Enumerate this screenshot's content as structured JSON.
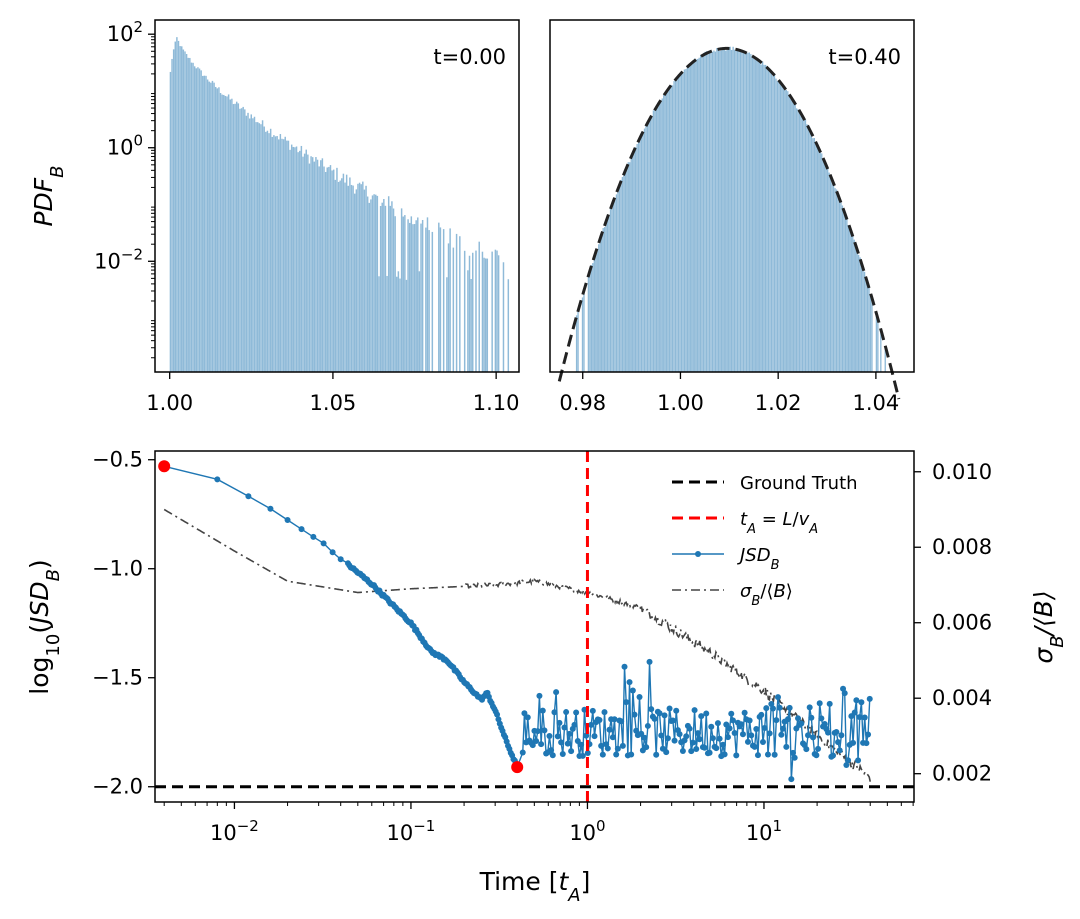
{
  "chart_data": [
    {
      "type": "bar",
      "panel": "histogram-t0",
      "annotation": "t=0.00",
      "ylabel_html": "PDF<tspan baseline-shift='sub' font-size='18'>B</tspan>",
      "ylabel_text": "PDF_B",
      "yscale": "log",
      "xlim": [
        0.9955,
        1.107
      ],
      "ylim_log10": [
        -3.95,
        2.25
      ],
      "xticks": [
        1.0,
        1.05,
        1.1
      ],
      "xtick_labels": [
        "1.00",
        "1.05",
        "1.10"
      ],
      "yticks_exp": [
        2,
        0,
        -2
      ],
      "color": "#8fbad8",
      "decay_profile": {
        "peak_x": 1.0023,
        "peak_log10": 1.95,
        "start_x": 1.0,
        "end_x": 1.104,
        "tail_log10": -2.15
      }
    },
    {
      "type": "bar",
      "panel": "histogram-t0.40",
      "annotation": "t=0.40",
      "yscale": "log",
      "xlim": [
        0.9733,
        1.0478
      ],
      "ylim_log10": [
        -3.95,
        2.25
      ],
      "xticks": [
        0.98,
        1.0,
        1.02,
        1.04
      ],
      "xtick_labels": [
        "0.98",
        "1.00",
        "1.02",
        "1.04"
      ],
      "color": "#8fbad8",
      "gaussian_fit": {
        "mean": 1.0095,
        "sigma": 0.0066,
        "peak_log10": 1.75,
        "color": "#222222"
      },
      "bar_range": [
        0.978,
        1.0445
      ]
    },
    {
      "type": "line",
      "panel": "jsd-timeseries",
      "xlabel_text": "Time [t_A]",
      "ylabel_text": "log10(JSD_B)",
      "y2label_text": "σ_B/⟨B⟩",
      "xscale": "log",
      "xlim_log10": [
        -2.45,
        1.85
      ],
      "ylim": [
        -2.07,
        -0.46
      ],
      "y2lim": [
        0.00125,
        0.01055
      ],
      "xticks_exp": [
        -2,
        -1,
        0,
        1
      ],
      "yticks": [
        -0.5,
        -1.0,
        -1.5,
        -2.0
      ],
      "ytick_labels": [
        "−0.5",
        "−1.0",
        "−1.5",
        "−2.0"
      ],
      "y2ticks": [
        0.002,
        0.004,
        0.006,
        0.008,
        0.01
      ],
      "y2tick_labels": [
        "0.002",
        "0.004",
        "0.006",
        "0.008",
        "0.010"
      ],
      "ground_truth": -2.0,
      "t_A_line_x": 1.0,
      "legend": [
        {
          "label": "Ground Truth",
          "color": "#000000",
          "style": "dashed"
        },
        {
          "label": "t_A = L/v_A",
          "color": "#ff0000",
          "style": "dashed"
        },
        {
          "label": "JSD_B",
          "color": "#1f77b4",
          "style": "line-marker"
        },
        {
          "label": "σ_B/⟨B⟩",
          "color": "#444444",
          "style": "dashdot"
        }
      ],
      "highlight_points": [
        {
          "x": 0.004,
          "y": -0.53
        },
        {
          "x": 0.4,
          "y": -1.91
        }
      ],
      "jsd_anchors": [
        [
          0.004,
          -0.53
        ],
        [
          0.008,
          -0.59
        ],
        [
          0.015,
          -0.71
        ],
        [
          0.03,
          -0.87
        ],
        [
          0.06,
          -1.07
        ],
        [
          0.1,
          -1.25
        ],
        [
          0.13,
          -1.38
        ],
        [
          0.16,
          -1.42
        ],
        [
          0.2,
          -1.52
        ],
        [
          0.25,
          -1.6
        ],
        [
          0.27,
          -1.57
        ],
        [
          0.3,
          -1.65
        ],
        [
          0.35,
          -1.8
        ],
        [
          0.4,
          -1.91
        ]
      ],
      "jsd_noise": {
        "start": 0.4,
        "end": 40,
        "mean": -1.75,
        "spread": 0.11
      },
      "sigma_anchors": [
        [
          0.004,
          0.009
        ],
        [
          0.01,
          0.0079
        ],
        [
          0.02,
          0.0071
        ],
        [
          0.05,
          0.0068
        ],
        [
          0.1,
          0.0069
        ],
        [
          0.3,
          0.007
        ],
        [
          0.5,
          0.0071
        ],
        [
          1.0,
          0.0068
        ],
        [
          2.0,
          0.0064
        ],
        [
          5.0,
          0.0052
        ],
        [
          10,
          0.0042
        ],
        [
          20,
          0.003
        ],
        [
          40,
          0.0019
        ]
      ]
    }
  ]
}
